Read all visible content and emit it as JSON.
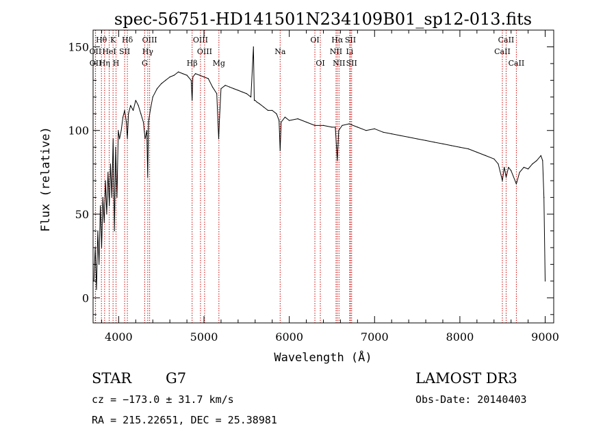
{
  "chart_data": {
    "type": "line",
    "title": "spec-56751-HD141501N234109B01_sp12-013.fits",
    "xlabel": "Wavelength (Å)",
    "ylabel": "Flux (relative)",
    "xlim": [
      3700,
      9100
    ],
    "ylim": [
      -15,
      160
    ],
    "x_ticks": [
      4000,
      5000,
      6000,
      7000,
      8000,
      9000
    ],
    "y_ticks": [
      0,
      50,
      100,
      150
    ],
    "x_tick_labels": [
      "4000",
      "5000",
      "6000",
      "7000",
      "8000",
      "9000"
    ],
    "y_tick_labels": [
      "0",
      "50",
      "100",
      "150"
    ],
    "series": [
      {
        "name": "Flux",
        "x": [
          3710,
          3725,
          3740,
          3755,
          3770,
          3785,
          3800,
          3815,
          3830,
          3845,
          3860,
          3875,
          3890,
          3905,
          3920,
          3935,
          3950,
          3965,
          3980,
          3995,
          4010,
          4030,
          4050,
          4070,
          4090,
          4102,
          4115,
          4140,
          4170,
          4200,
          4230,
          4260,
          4290,
          4310,
          4330,
          4340,
          4350,
          4370,
          4400,
          4450,
          4500,
          4550,
          4600,
          4650,
          4700,
          4750,
          4800,
          4850,
          4861,
          4870,
          4900,
          4950,
          5000,
          5050,
          5100,
          5150,
          5172,
          5183,
          5200,
          5250,
          5300,
          5350,
          5400,
          5450,
          5500,
          5550,
          5580,
          5590,
          5600,
          5620,
          5650,
          5700,
          5750,
          5800,
          5850,
          5880,
          5893,
          5905,
          5950,
          6000,
          6100,
          6200,
          6300,
          6400,
          6500,
          6540,
          6563,
          6580,
          6620,
          6700,
          6800,
          6900,
          7000,
          7100,
          7200,
          7300,
          7400,
          7500,
          7600,
          7700,
          7800,
          7900,
          8000,
          8100,
          8200,
          8300,
          8400,
          8450,
          8498,
          8520,
          8542,
          8570,
          8600,
          8662,
          8700,
          8750,
          8800,
          8850,
          8900,
          8950,
          8970,
          8985,
          9000
        ],
        "y": [
          10,
          30,
          5,
          40,
          20,
          55,
          30,
          60,
          45,
          70,
          50,
          75,
          55,
          80,
          60,
          95,
          40,
          90,
          60,
          100,
          95,
          100,
          108,
          112,
          105,
          95,
          110,
          115,
          112,
          118,
          115,
          110,
          105,
          95,
          100,
          72,
          105,
          112,
          120,
          125,
          128,
          130,
          132,
          133,
          135,
          134,
          133,
          130,
          118,
          132,
          134,
          133,
          132,
          131,
          126,
          122,
          95,
          108,
          125,
          127,
          126,
          125,
          124,
          123,
          122,
          120,
          150,
          118,
          118,
          117,
          116,
          114,
          112,
          112,
          110,
          106,
          88,
          105,
          108,
          106,
          107,
          105,
          103,
          103,
          102,
          102,
          82,
          100,
          103,
          104,
          102,
          100,
          101,
          99,
          98,
          97,
          96,
          95,
          94,
          93,
          92,
          91,
          90,
          89,
          87,
          85,
          83,
          80,
          70,
          78,
          72,
          78,
          76,
          68,
          75,
          78,
          77,
          80,
          82,
          85,
          82,
          60,
          10
        ]
      }
    ],
    "line_color": "#000000",
    "marker_color": "#cc0000",
    "line_markers": [
      {
        "label": "Hθ",
        "x": 3798,
        "row": 0
      },
      {
        "label": "OII",
        "x": 3727,
        "row": 1
      },
      {
        "label": "OII",
        "x": 3729,
        "row": 2
      },
      {
        "label": "K",
        "x": 3934,
        "row": 0
      },
      {
        "label": "HeI",
        "x": 3889,
        "row": 1
      },
      {
        "label": "Hη",
        "x": 3835,
        "row": 2
      },
      {
        "label": "Hδ",
        "x": 4102,
        "row": 0
      },
      {
        "label": "SII",
        "x": 4070,
        "row": 1
      },
      {
        "label": "H",
        "x": 3969,
        "row": 2
      },
      {
        "label": "OIII",
        "x": 4363,
        "row": 0
      },
      {
        "label": "Hγ",
        "x": 4341,
        "row": 1
      },
      {
        "label": "G",
        "x": 4305,
        "row": 2
      },
      {
        "label": "Hβ",
        "x": 4861,
        "row": 2
      },
      {
        "label": "OIII",
        "x": 4959,
        "row": 0
      },
      {
        "label": "OIII",
        "x": 5007,
        "row": 1
      },
      {
        "label": "Mg",
        "x": 5175,
        "row": 2
      },
      {
        "label": "Na",
        "x": 5893,
        "row": 1
      },
      {
        "label": "OI",
        "x": 6300,
        "row": 0
      },
      {
        "label": "OI",
        "x": 6364,
        "row": 2
      },
      {
        "label": "Hα",
        "x": 6563,
        "row": 0
      },
      {
        "label": "NII",
        "x": 6548,
        "row": 1
      },
      {
        "label": "NII",
        "x": 6583,
        "row": 2
      },
      {
        "label": "SII",
        "x": 6717,
        "row": 0
      },
      {
        "label": "Li",
        "x": 6708,
        "row": 1
      },
      {
        "label": "SII",
        "x": 6731,
        "row": 2
      },
      {
        "label": "CaII",
        "x": 8542,
        "row": 0
      },
      {
        "label": "CaII",
        "x": 8498,
        "row": 1
      },
      {
        "label": "CaII",
        "x": 8662,
        "row": 2
      }
    ]
  },
  "info": {
    "class_label": "STAR",
    "subclass": "G7",
    "survey": "LAMOST DR3",
    "cz": "cz = −173.0 ± 31.7 km/s",
    "obs_date": "Obs-Date: 20140403",
    "radec": "RA = 215.22651, DEC =  25.38981"
  }
}
